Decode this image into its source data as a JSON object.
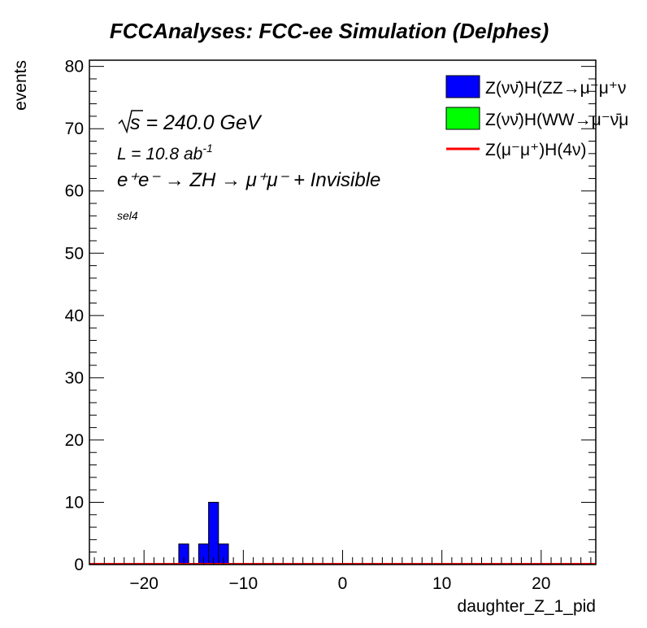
{
  "chart_data": {
    "type": "bar",
    "title": "FCCAnalyses: FCC-ee Simulation (Delphes)",
    "xlabel": "daughter_Z_1_pid",
    "ylabel": "events",
    "xlim": [
      -25.5,
      25.5
    ],
    "ylim": [
      0,
      81
    ],
    "xticks": [
      -20,
      -10,
      0,
      10,
      20
    ],
    "yticks": [
      0,
      10,
      20,
      30,
      40,
      50,
      60,
      70,
      80
    ],
    "bin_width": 1,
    "annotations": {
      "sqrt_s": "s = 240.0 GeV",
      "luminosity": "L = 10.8 ab",
      "luminosity_exp": "-1",
      "process": "e⁺e⁻ → ZH → μ⁺μ⁻ + Invisible",
      "selection": "sel4"
    },
    "series": [
      {
        "name": "Z(νν̄)H(ZZ→μ⁻μ⁺ν",
        "style": "filled",
        "color": "#0000ff",
        "bins": [
          {
            "x": -16,
            "value": 3.3
          },
          {
            "x": -14,
            "value": 3.3
          },
          {
            "x": -13,
            "value": 10
          },
          {
            "x": -12,
            "value": 3.3
          }
        ]
      },
      {
        "name": "Z(νν̄)H(WW→μ⁻ν̄μ",
        "style": "filled",
        "color": "#00ff00",
        "bins": []
      },
      {
        "name": "Z(μ⁻μ⁺)H(4ν)",
        "style": "line",
        "color": "#ff0000",
        "bins": []
      }
    ]
  }
}
